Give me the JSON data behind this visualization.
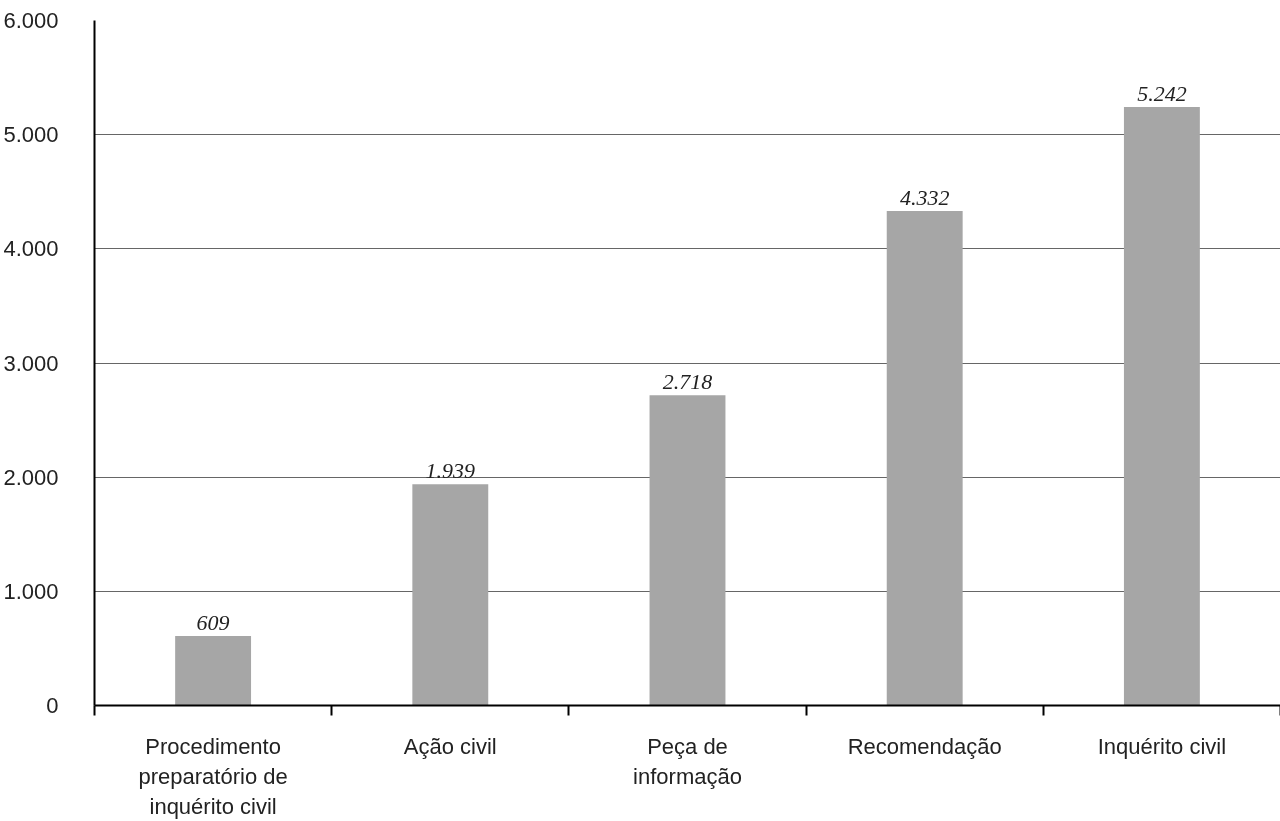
{
  "chart_data": {
    "type": "bar",
    "categories": [
      "Procedimento\npreparatório de\ninquérito civil",
      "Ação civil",
      "Peça de\ninformação",
      "Recomendação",
      "Inquérito civil"
    ],
    "values": [
      609,
      1939,
      2718,
      4332,
      5242
    ],
    "value_labels": [
      "609",
      "1.939",
      "2.718",
      "4.332",
      "5.242"
    ],
    "color": "#a6a6a6",
    "ylim": [
      0,
      6000
    ],
    "yticks": [
      {
        "value": 0,
        "label": "0"
      },
      {
        "value": 1000,
        "label": "1.000"
      },
      {
        "value": 2000,
        "label": "2.000"
      },
      {
        "value": 3000,
        "label": "3.000"
      },
      {
        "value": 4000,
        "label": "4.000"
      },
      {
        "value": 5000,
        "label": "5.000"
      },
      {
        "value": 6000,
        "label": "6.000"
      }
    ],
    "grid": "y"
  }
}
